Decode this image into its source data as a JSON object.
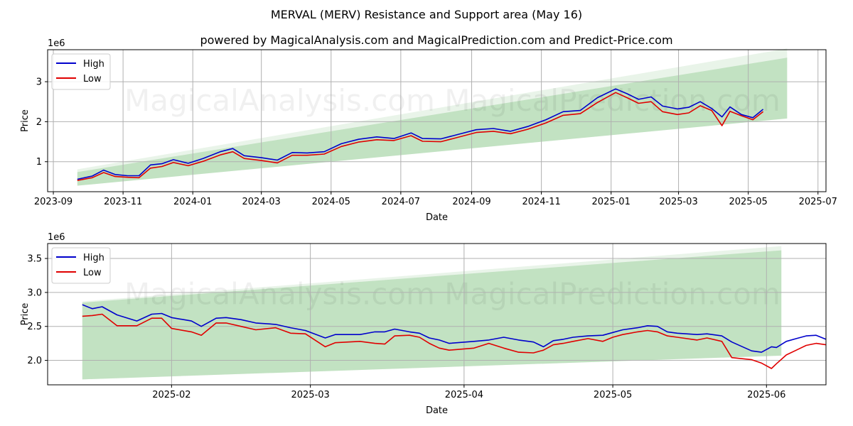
{
  "title": "MERVAL (MERV) Resistance and Support area (May 16)",
  "subtitle": "powered by MagicalAnalysis.com and MagicalPrediction.com and Predict-Price.com",
  "watermark": "MagicalAnalysis.com    MagicalPrediction.com",
  "colors": {
    "high": "#0000cc",
    "low": "#e00000",
    "band": "#9bcf9b",
    "grid": "#b0b0b0"
  },
  "chart_data": [
    {
      "type": "line",
      "xlabel": "Date",
      "ylabel": "Price",
      "offset_label": "1e6",
      "grid": true,
      "legend_position": "upper-left",
      "xlim": [
        "2023-08-27",
        "2025-07-08"
      ],
      "ylim": [
        250000,
        3800000
      ],
      "x_ticks": [
        "2023-09",
        "2023-11",
        "2024-01",
        "2024-03",
        "2024-05",
        "2024-07",
        "2024-09",
        "2024-11",
        "2025-01",
        "2025-03",
        "2025-05",
        "2025-07"
      ],
      "y_ticks": [
        1000000,
        2000000,
        3000000
      ],
      "y_tick_labels": [
        "1",
        "2",
        "3"
      ],
      "band": {
        "x": [
          "2023-09-22",
          "2025-06-04"
        ],
        "lower": [
          400000,
          2080000
        ],
        "upper": [
          740000,
          3600000
        ]
      },
      "series": [
        {
          "name": "High",
          "color": "#0000cc",
          "points": [
            [
              "2023-09-22",
              560000
            ],
            [
              "2023-10-05",
              640000
            ],
            [
              "2023-10-15",
              790000
            ],
            [
              "2023-10-25",
              680000
            ],
            [
              "2023-11-05",
              650000
            ],
            [
              "2023-11-15",
              650000
            ],
            [
              "2023-11-25",
              920000
            ],
            [
              "2023-12-05",
              950000
            ],
            [
              "2023-12-15",
              1050000
            ],
            [
              "2023-12-28",
              960000
            ],
            [
              "2024-01-10",
              1080000
            ],
            [
              "2024-01-25",
              1250000
            ],
            [
              "2024-02-05",
              1330000
            ],
            [
              "2024-02-15",
              1150000
            ],
            [
              "2024-03-01",
              1100000
            ],
            [
              "2024-03-15",
              1040000
            ],
            [
              "2024-03-28",
              1230000
            ],
            [
              "2024-04-10",
              1220000
            ],
            [
              "2024-04-25",
              1250000
            ],
            [
              "2024-05-10",
              1450000
            ],
            [
              "2024-05-25",
              1560000
            ],
            [
              "2024-06-10",
              1620000
            ],
            [
              "2024-06-25",
              1580000
            ],
            [
              "2024-07-10",
              1720000
            ],
            [
              "2024-07-20",
              1580000
            ],
            [
              "2024-08-05",
              1570000
            ],
            [
              "2024-08-20",
              1680000
            ],
            [
              "2024-09-05",
              1800000
            ],
            [
              "2024-09-20",
              1830000
            ],
            [
              "2024-10-05",
              1760000
            ],
            [
              "2024-10-20",
              1880000
            ],
            [
              "2024-11-05",
              2050000
            ],
            [
              "2024-11-20",
              2250000
            ],
            [
              "2024-12-05",
              2280000
            ],
            [
              "2024-12-20",
              2600000
            ],
            [
              "2025-01-05",
              2820000
            ],
            [
              "2025-01-15",
              2700000
            ],
            [
              "2025-01-25",
              2560000
            ],
            [
              "2025-02-05",
              2620000
            ],
            [
              "2025-02-15",
              2390000
            ],
            [
              "2025-02-28",
              2320000
            ],
            [
              "2025-03-10",
              2360000
            ],
            [
              "2025-03-20",
              2500000
            ],
            [
              "2025-03-30",
              2330000
            ],
            [
              "2025-04-08",
              2120000
            ],
            [
              "2025-04-15",
              2370000
            ],
            [
              "2025-04-25",
              2180000
            ],
            [
              "2025-05-05",
              2100000
            ],
            [
              "2025-05-14",
              2310000
            ]
          ]
        },
        {
          "name": "Low",
          "color": "#e00000",
          "points": [
            [
              "2023-09-22",
              530000
            ],
            [
              "2023-10-05",
              600000
            ],
            [
              "2023-10-15",
              730000
            ],
            [
              "2023-10-25",
              630000
            ],
            [
              "2023-11-05",
              610000
            ],
            [
              "2023-11-15",
              600000
            ],
            [
              "2023-11-25",
              840000
            ],
            [
              "2023-12-05",
              880000
            ],
            [
              "2023-12-15",
              980000
            ],
            [
              "2023-12-28",
              900000
            ],
            [
              "2024-01-10",
              1010000
            ],
            [
              "2024-01-25",
              1170000
            ],
            [
              "2024-02-05",
              1250000
            ],
            [
              "2024-02-15",
              1080000
            ],
            [
              "2024-03-01",
              1030000
            ],
            [
              "2024-03-15",
              970000
            ],
            [
              "2024-03-28",
              1160000
            ],
            [
              "2024-04-10",
              1160000
            ],
            [
              "2024-04-25",
              1190000
            ],
            [
              "2024-05-10",
              1380000
            ],
            [
              "2024-05-25",
              1490000
            ],
            [
              "2024-06-10",
              1550000
            ],
            [
              "2024-06-25",
              1530000
            ],
            [
              "2024-07-10",
              1650000
            ],
            [
              "2024-07-20",
              1510000
            ],
            [
              "2024-08-05",
              1500000
            ],
            [
              "2024-08-20",
              1610000
            ],
            [
              "2024-09-05",
              1730000
            ],
            [
              "2024-09-20",
              1760000
            ],
            [
              "2024-10-05",
              1700000
            ],
            [
              "2024-10-20",
              1810000
            ],
            [
              "2024-11-05",
              1970000
            ],
            [
              "2024-11-20",
              2160000
            ],
            [
              "2024-12-05",
              2200000
            ],
            [
              "2024-12-20",
              2480000
            ],
            [
              "2025-01-05",
              2730000
            ],
            [
              "2025-01-15",
              2600000
            ],
            [
              "2025-01-25",
              2460000
            ],
            [
              "2025-02-05",
              2500000
            ],
            [
              "2025-02-15",
              2250000
            ],
            [
              "2025-02-28",
              2180000
            ],
            [
              "2025-03-10",
              2220000
            ],
            [
              "2025-03-20",
              2400000
            ],
            [
              "2025-03-30",
              2280000
            ],
            [
              "2025-04-08",
              1900000
            ],
            [
              "2025-04-15",
              2260000
            ],
            [
              "2025-04-25",
              2150000
            ],
            [
              "2025-05-05",
              2050000
            ],
            [
              "2025-05-14",
              2250000
            ]
          ]
        }
      ]
    },
    {
      "type": "line",
      "xlabel": "Date",
      "ylabel": "Price",
      "offset_label": "1e6",
      "grid": true,
      "legend_position": "upper-left",
      "xlim": [
        "2025-01-07",
        "2025-06-13"
      ],
      "ylim": [
        1640000,
        3720000
      ],
      "x_ticks": [
        "2025-02-01",
        "2025-03-01",
        "2025-04-01",
        "2025-05-01",
        "2025-06-01"
      ],
      "x_tick_labels": [
        "2025-02",
        "2025-03",
        "2025-04",
        "2025-05",
        "2025-06"
      ],
      "y_ticks": [
        2000000,
        2500000,
        3000000,
        3500000
      ],
      "y_tick_labels": [
        "2.0",
        "2.5",
        "3.0",
        "3.5"
      ],
      "band": {
        "x": [
          "2025-01-14",
          "2025-06-04"
        ],
        "lower": [
          1720000,
          2070000
        ],
        "upper": [
          2850000,
          3620000
        ]
      },
      "series": [
        {
          "name": "High",
          "color": "#0000cc",
          "points": [
            [
              "2025-01-14",
              2820000
            ],
            [
              "2025-01-16",
              2760000
            ],
            [
              "2025-01-18",
              2790000
            ],
            [
              "2025-01-21",
              2670000
            ],
            [
              "2025-01-25",
              2580000
            ],
            [
              "2025-01-28",
              2680000
            ],
            [
              "2025-01-30",
              2690000
            ],
            [
              "2025-02-01",
              2630000
            ],
            [
              "2025-02-05",
              2580000
            ],
            [
              "2025-02-07",
              2500000
            ],
            [
              "2025-02-10",
              2620000
            ],
            [
              "2025-02-12",
              2630000
            ],
            [
              "2025-02-15",
              2600000
            ],
            [
              "2025-02-18",
              2550000
            ],
            [
              "2025-02-22",
              2530000
            ],
            [
              "2025-02-25",
              2480000
            ],
            [
              "2025-02-28",
              2440000
            ],
            [
              "2025-03-04",
              2330000
            ],
            [
              "2025-03-06",
              2380000
            ],
            [
              "2025-03-11",
              2380000
            ],
            [
              "2025-03-14",
              2420000
            ],
            [
              "2025-03-16",
              2420000
            ],
            [
              "2025-03-18",
              2460000
            ],
            [
              "2025-03-21",
              2420000
            ],
            [
              "2025-03-23",
              2400000
            ],
            [
              "2025-03-25",
              2330000
            ],
            [
              "2025-03-27",
              2300000
            ],
            [
              "2025-03-29",
              2250000
            ],
            [
              "2025-04-03",
              2280000
            ],
            [
              "2025-04-06",
              2300000
            ],
            [
              "2025-04-09",
              2340000
            ],
            [
              "2025-04-12",
              2300000
            ],
            [
              "2025-04-15",
              2270000
            ],
            [
              "2025-04-17",
              2200000
            ],
            [
              "2025-04-19",
              2290000
            ],
            [
              "2025-04-21",
              2310000
            ],
            [
              "2025-04-23",
              2340000
            ],
            [
              "2025-04-26",
              2360000
            ],
            [
              "2025-04-29",
              2370000
            ],
            [
              "2025-05-01",
              2410000
            ],
            [
              "2025-05-03",
              2450000
            ],
            [
              "2025-05-06",
              2480000
            ],
            [
              "2025-05-08",
              2510000
            ],
            [
              "2025-05-10",
              2500000
            ],
            [
              "2025-05-12",
              2420000
            ],
            [
              "2025-05-14",
              2400000
            ],
            [
              "2025-05-18",
              2380000
            ],
            [
              "2025-05-20",
              2390000
            ],
            [
              "2025-05-23",
              2360000
            ],
            [
              "2025-05-25",
              2270000
            ],
            [
              "2025-05-29",
              2140000
            ],
            [
              "2025-05-31",
              2120000
            ],
            [
              "2025-06-02",
              2200000
            ],
            [
              "2025-06-03",
              2190000
            ],
            [
              "2025-06-05",
              2280000
            ],
            [
              "2025-06-07",
              2320000
            ],
            [
              "2025-06-09",
              2360000
            ],
            [
              "2025-06-11",
              2370000
            ],
            [
              "2025-06-13",
              2310000
            ]
          ]
        },
        {
          "name": "Low",
          "color": "#e00000",
          "points": [
            [
              "2025-01-14",
              2650000
            ],
            [
              "2025-01-16",
              2660000
            ],
            [
              "2025-01-18",
              2680000
            ],
            [
              "2025-01-21",
              2510000
            ],
            [
              "2025-01-25",
              2510000
            ],
            [
              "2025-01-28",
              2620000
            ],
            [
              "2025-01-30",
              2620000
            ],
            [
              "2025-02-01",
              2470000
            ],
            [
              "2025-02-05",
              2420000
            ],
            [
              "2025-02-07",
              2370000
            ],
            [
              "2025-02-10",
              2550000
            ],
            [
              "2025-02-12",
              2550000
            ],
            [
              "2025-02-15",
              2500000
            ],
            [
              "2025-02-18",
              2450000
            ],
            [
              "2025-02-22",
              2480000
            ],
            [
              "2025-02-25",
              2400000
            ],
            [
              "2025-02-28",
              2390000
            ],
            [
              "2025-03-04",
              2200000
            ],
            [
              "2025-03-06",
              2260000
            ],
            [
              "2025-03-11",
              2280000
            ],
            [
              "2025-03-14",
              2250000
            ],
            [
              "2025-03-16",
              2240000
            ],
            [
              "2025-03-18",
              2360000
            ],
            [
              "2025-03-21",
              2370000
            ],
            [
              "2025-03-23",
              2340000
            ],
            [
              "2025-03-25",
              2250000
            ],
            [
              "2025-03-27",
              2180000
            ],
            [
              "2025-03-29",
              2150000
            ],
            [
              "2025-04-03",
              2180000
            ],
            [
              "2025-04-06",
              2250000
            ],
            [
              "2025-04-09",
              2180000
            ],
            [
              "2025-04-12",
              2120000
            ],
            [
              "2025-04-15",
              2110000
            ],
            [
              "2025-04-17",
              2150000
            ],
            [
              "2025-04-19",
              2230000
            ],
            [
              "2025-04-21",
              2250000
            ],
            [
              "2025-04-23",
              2280000
            ],
            [
              "2025-04-26",
              2320000
            ],
            [
              "2025-04-29",
              2280000
            ],
            [
              "2025-05-01",
              2340000
            ],
            [
              "2025-05-03",
              2380000
            ],
            [
              "2025-05-06",
              2420000
            ],
            [
              "2025-05-08",
              2440000
            ],
            [
              "2025-05-10",
              2420000
            ],
            [
              "2025-05-12",
              2360000
            ],
            [
              "2025-05-14",
              2340000
            ],
            [
              "2025-05-18",
              2300000
            ],
            [
              "2025-05-20",
              2330000
            ],
            [
              "2025-05-23",
              2280000
            ],
            [
              "2025-05-25",
              2040000
            ],
            [
              "2025-05-29",
              2010000
            ],
            [
              "2025-05-31",
              1960000
            ],
            [
              "2025-06-02",
              1880000
            ],
            [
              "2025-06-03",
              1950000
            ],
            [
              "2025-06-05",
              2080000
            ],
            [
              "2025-06-07",
              2150000
            ],
            [
              "2025-06-09",
              2220000
            ],
            [
              "2025-06-11",
              2250000
            ],
            [
              "2025-06-13",
              2230000
            ]
          ]
        }
      ]
    }
  ]
}
